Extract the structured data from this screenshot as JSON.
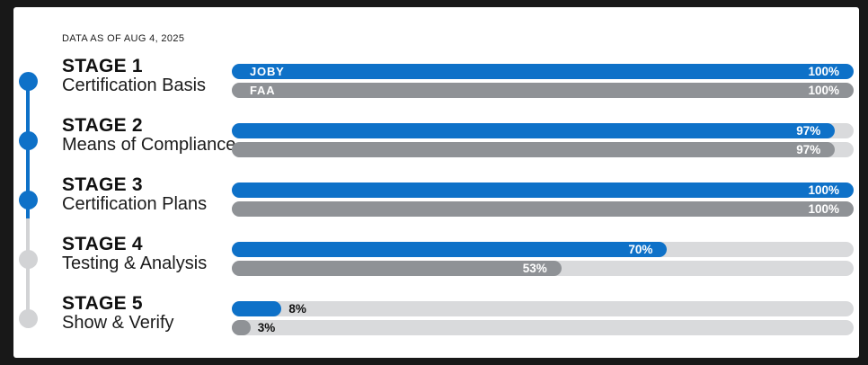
{
  "meta": {
    "data_as_of": "DATA AS OF AUG 4, 2025"
  },
  "colors": {
    "primary_blue": "#0e71c8",
    "faa_gray": "#8f9296",
    "track_gray": "#d9dadc",
    "inactive_gray": "#d2d3d5",
    "card_background": "#ffffff",
    "frame_background": "#181818",
    "text_dark": "#111111",
    "label_white": "#ffffff"
  },
  "series_labels": {
    "primary": "JOBY",
    "secondary": "FAA"
  },
  "stages": [
    {
      "stage_label": "STAGE 1",
      "stage_name": "Certification Basis",
      "joby_pct": 100,
      "faa_pct": 100,
      "complete": true,
      "show_series_labels": true
    },
    {
      "stage_label": "STAGE 2",
      "stage_name": "Means of Compliance",
      "joby_pct": 97,
      "faa_pct": 97,
      "complete": true,
      "show_series_labels": false
    },
    {
      "stage_label": "STAGE 3",
      "stage_name": "Certification Plans",
      "joby_pct": 100,
      "faa_pct": 100,
      "complete": true,
      "show_series_labels": false
    },
    {
      "stage_label": "STAGE 4",
      "stage_name": "Testing & Analysis",
      "joby_pct": 70,
      "faa_pct": 53,
      "complete": false,
      "show_series_labels": false
    },
    {
      "stage_label": "STAGE 5",
      "stage_name": "Show & Verify",
      "joby_pct": 8,
      "faa_pct": 3,
      "complete": false,
      "show_series_labels": false
    }
  ],
  "chart_data": {
    "type": "bar",
    "orientation": "horizontal",
    "title": "DATA AS OF AUG 4, 2025",
    "categories": [
      "STAGE 1 — Certification Basis",
      "STAGE 2 — Means of Compliance",
      "STAGE 3 — Certification Plans",
      "STAGE 4 — Testing & Analysis",
      "STAGE 5 — Show & Verify"
    ],
    "series": [
      {
        "name": "JOBY",
        "color": "#0e71c8",
        "values": [
          100,
          97,
          100,
          70,
          8
        ]
      },
      {
        "name": "FAA",
        "color": "#8f9296",
        "values": [
          100,
          97,
          100,
          53,
          3
        ]
      }
    ],
    "value_unit": "%",
    "xlim": [
      0,
      100
    ],
    "grid": false,
    "legend_position": "inline-on-first-bar-pair",
    "data_labels": [
      "100%",
      "97%",
      "100%",
      "70%",
      "8%",
      "100%",
      "97%",
      "100%",
      "53%",
      "3%"
    ],
    "timeline_complete_stages": [
      "STAGE 1",
      "STAGE 2",
      "STAGE 3"
    ],
    "timeline_incomplete_stages": [
      "STAGE 4",
      "STAGE 5"
    ]
  }
}
